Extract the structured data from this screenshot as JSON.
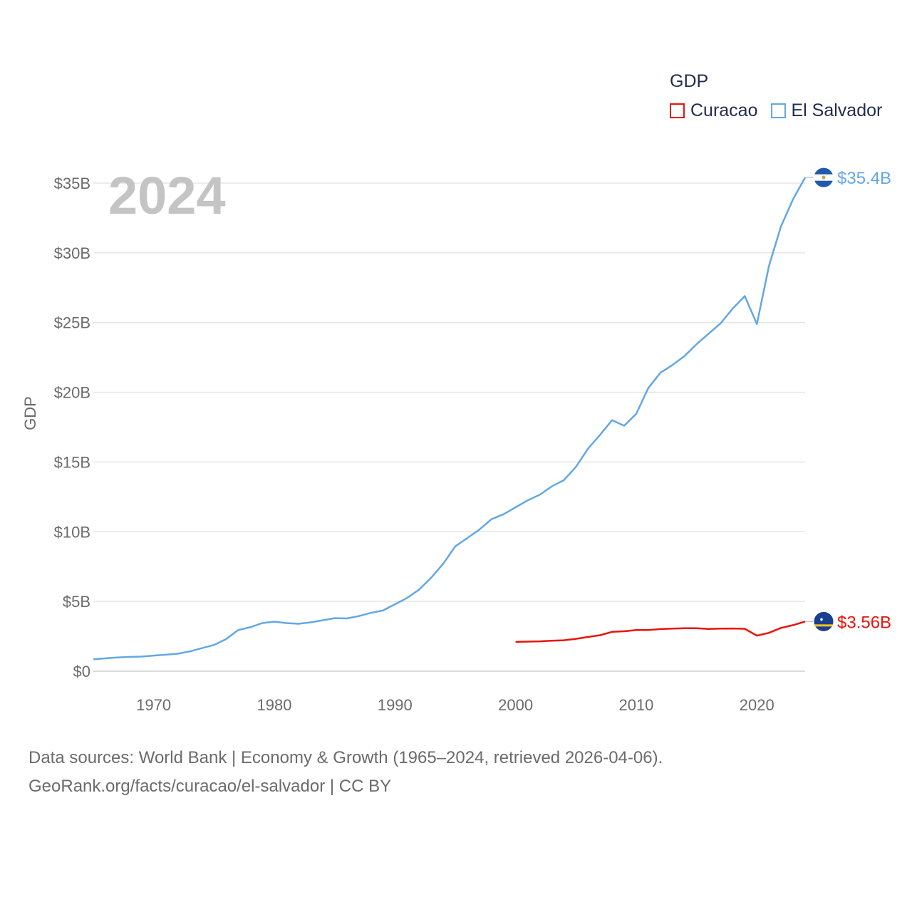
{
  "chart_data": {
    "type": "line",
    "title": "",
    "year_overlay": "2024",
    "ylabel": "GDP",
    "xlabel": "",
    "xlim": [
      1965,
      2024
    ],
    "ylim": [
      0,
      35
    ],
    "x_ticks": [
      1970,
      1980,
      1990,
      2000,
      2010,
      2020
    ],
    "y_ticks": [
      {
        "value": 0,
        "label": "$0"
      },
      {
        "value": 5,
        "label": "$5B"
      },
      {
        "value": 10,
        "label": "$10B"
      },
      {
        "value": 15,
        "label": "$15B"
      },
      {
        "value": 20,
        "label": "$20B"
      },
      {
        "value": 25,
        "label": "$25B"
      },
      {
        "value": 30,
        "label": "$30B"
      },
      {
        "value": 35,
        "label": "$35B"
      }
    ],
    "legend": {
      "title": "GDP",
      "position": "top-right"
    },
    "series": [
      {
        "name": "Curacao",
        "color": "#e8140c",
        "end_label": "$3.56B",
        "flag_icon": "curacao-flag-icon",
        "x": [
          2000,
          2001,
          2002,
          2003,
          2004,
          2005,
          2006,
          2007,
          2008,
          2009,
          2010,
          2011,
          2012,
          2013,
          2014,
          2015,
          2016,
          2017,
          2018,
          2019,
          2020,
          2021,
          2022,
          2023,
          2024
        ],
        "values": [
          2.1,
          2.12,
          2.14,
          2.18,
          2.22,
          2.32,
          2.45,
          2.58,
          2.82,
          2.86,
          2.95,
          2.95,
          3.02,
          3.05,
          3.08,
          3.08,
          3.03,
          3.05,
          3.06,
          3.04,
          2.55,
          2.75,
          3.1,
          3.3,
          3.56
        ]
      },
      {
        "name": "El Salvador",
        "color": "#63a7e6",
        "end_label": "$35.4B",
        "flag_icon": "el-salvador-flag-icon",
        "x": [
          1965,
          1966,
          1967,
          1968,
          1969,
          1970,
          1971,
          1972,
          1973,
          1974,
          1975,
          1976,
          1977,
          1978,
          1979,
          1980,
          1981,
          1982,
          1983,
          1984,
          1985,
          1986,
          1987,
          1988,
          1989,
          1990,
          1991,
          1992,
          1993,
          1994,
          1995,
          1996,
          1997,
          1998,
          1999,
          2000,
          2001,
          2002,
          2003,
          2004,
          2005,
          2006,
          2007,
          2008,
          2009,
          2010,
          2011,
          2012,
          2013,
          2014,
          2015,
          2016,
          2017,
          2018,
          2019,
          2020,
          2021,
          2022,
          2023,
          2024
        ],
        "values": [
          0.85,
          0.92,
          0.98,
          1.02,
          1.05,
          1.12,
          1.18,
          1.25,
          1.42,
          1.65,
          1.88,
          2.3,
          2.95,
          3.15,
          3.45,
          3.55,
          3.45,
          3.4,
          3.5,
          3.65,
          3.8,
          3.78,
          3.95,
          4.18,
          4.35,
          4.8,
          5.25,
          5.85,
          6.7,
          7.7,
          8.95,
          9.55,
          10.15,
          10.9,
          11.25,
          11.75,
          12.25,
          12.65,
          13.25,
          13.7,
          14.65,
          15.95,
          16.95,
          18.0,
          17.6,
          18.45,
          20.3,
          21.4,
          21.95,
          22.6,
          23.45,
          24.2,
          24.95,
          26.0,
          26.9,
          24.9,
          29.05,
          31.9,
          33.85,
          35.4
        ]
      }
    ]
  },
  "source": {
    "line1": "Data sources: World Bank | Economy & Growth (1965–2024, retrieved 2026-04-06).",
    "line2": "GeoRank.org/facts/curacao/el-salvador | CC BY"
  }
}
